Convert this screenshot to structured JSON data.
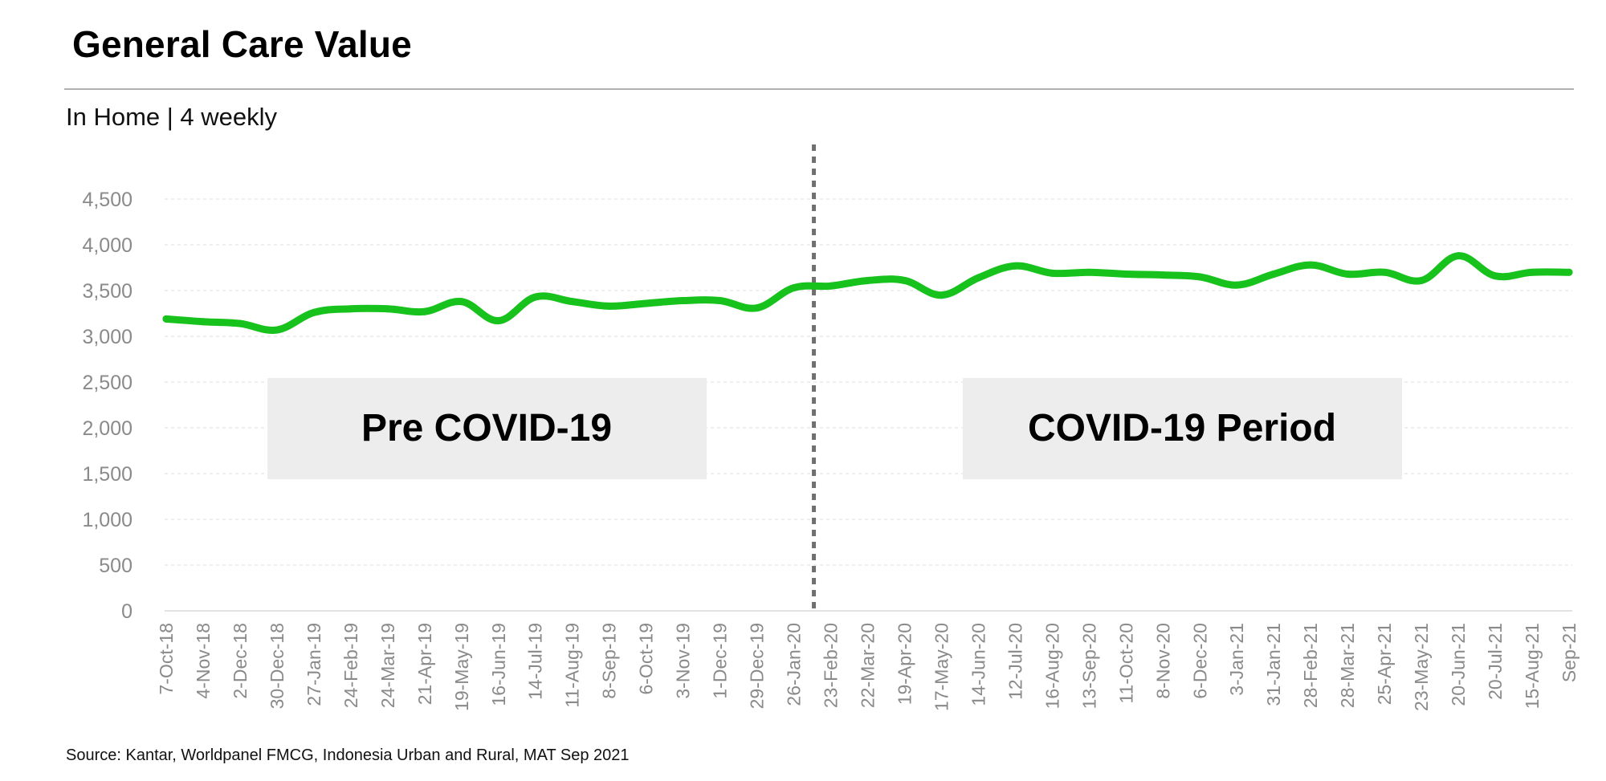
{
  "title": "General Care Value",
  "subtitle": "In Home | 4 weekly",
  "source": "Source: Kantar, Worldpanel FMCG, Indonesia Urban and Rural, MAT Sep 2021",
  "colors": {
    "line": "#17c21c",
    "gridline": "#e8e8e8",
    "axis_text": "#8a8a8a",
    "annotation_bg": "#ededed",
    "divider": "#707070"
  },
  "chart_data": {
    "type": "line",
    "title": "General Care Value",
    "subtitle": "In Home | 4 weekly",
    "xlabel": "",
    "ylabel": "",
    "ylim": [
      0,
      4500
    ],
    "yticks": [
      "0",
      "500",
      "1,000",
      "1,500",
      "2,000",
      "2,500",
      "3,000",
      "3,500",
      "4,000",
      "4,500"
    ],
    "grid": true,
    "categories": [
      "7-Oct-18",
      "4-Nov-18",
      "2-Dec-18",
      "30-Dec-18",
      "27-Jan-19",
      "24-Feb-19",
      "24-Mar-19",
      "21-Apr-19",
      "19-May-19",
      "16-Jun-19",
      "14-Jul-19",
      "11-Aug-19",
      "8-Sep-19",
      "6-Oct-19",
      "3-Nov-19",
      "1-Dec-19",
      "29-Dec-19",
      "26-Jan-20",
      "23-Feb-20",
      "22-Mar-20",
      "19-Apr-20",
      "17-May-20",
      "14-Jun-20",
      "12-Jul-20",
      "16-Aug-20",
      "13-Sep-20",
      "11-Oct-20",
      "8-Nov-20",
      "6-Dec-20",
      "3-Jan-21",
      "31-Jan-21",
      "28-Feb-21",
      "28-Mar-21",
      "25-Apr-21",
      "23-May-21",
      "20-Jun-21",
      "20-Jul-21",
      "15-Aug-21",
      "Sep-21"
    ],
    "series": [
      {
        "values": [
          3190,
          3160,
          3140,
          3070,
          3260,
          3300,
          3300,
          3270,
          3380,
          3170,
          3430,
          3380,
          3330,
          3360,
          3390,
          3390,
          3310,
          3530,
          3550,
          3610,
          3610,
          3450,
          3640,
          3770,
          3690,
          3700,
          3680,
          3670,
          3650,
          3560,
          3680,
          3780,
          3680,
          3700,
          3610,
          3880,
          3660,
          3700,
          3700
        ]
      }
    ],
    "divider_after_category": "26-Jan-20",
    "annotations": [
      {
        "text": "Pre COVID-19",
        "position": "left"
      },
      {
        "text": "COVID-19 Period",
        "position": "right"
      }
    ]
  }
}
